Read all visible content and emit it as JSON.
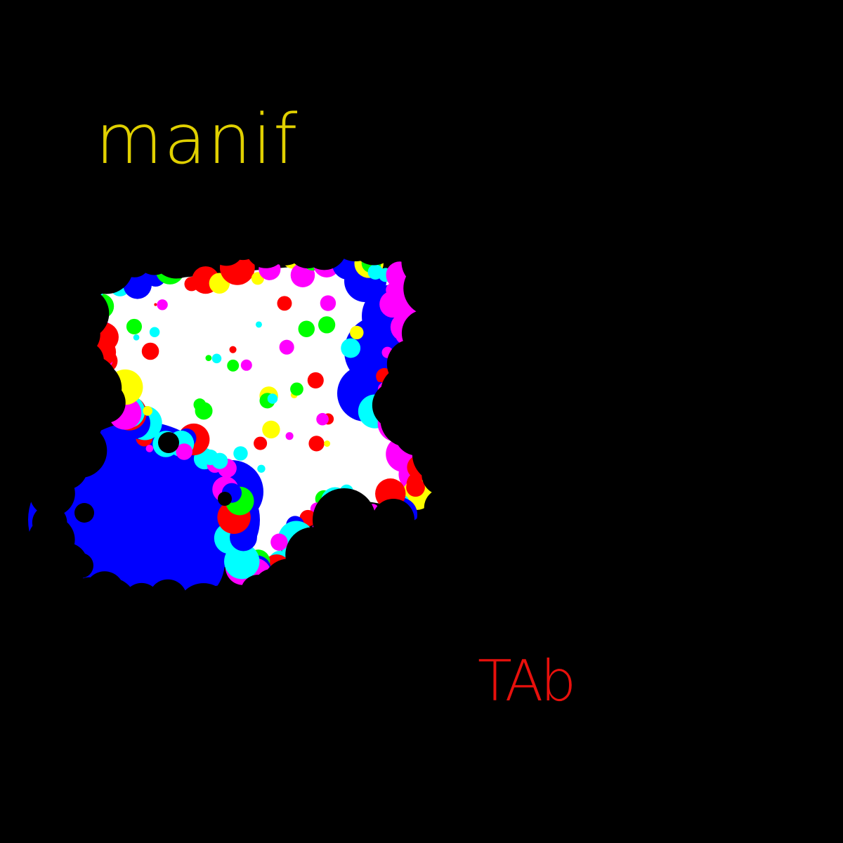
{
  "cover": {
    "title": "manif",
    "artist": "TAb",
    "colors": {
      "background": "#000000",
      "title": "#e0d000",
      "artist": "#e8100c",
      "blob": "#ffffff",
      "blue": "#0000ff",
      "cyan": "#00ffff",
      "magenta": "#ff00ff",
      "yellow": "#ffff00",
      "green": "#00ff00",
      "red": "#ff0000"
    }
  }
}
